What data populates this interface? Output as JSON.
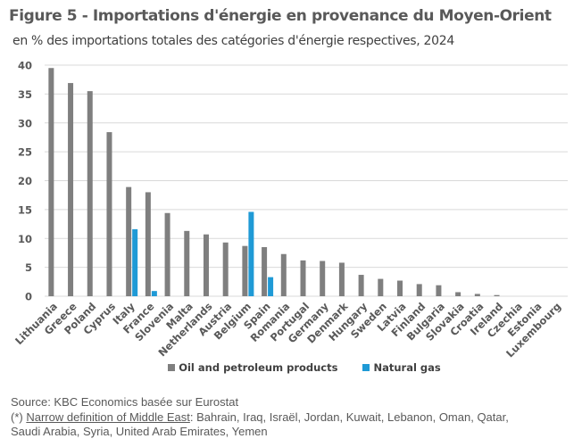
{
  "header": {
    "title": "Figure 5 - Importations d'énergie en provenance du Moyen-Orient",
    "subtitle": "en % des importations totales des catégories d'énergie respectives, 2024"
  },
  "footer": {
    "source": "Source: KBC Economics basée sur  Eurostat",
    "note_prefix": "(*) ",
    "note_link": "Narrow definition of Middle East",
    "note_rest": ": Bahrain, Iraq, Israël, Jordan, Kuwait, Lebanon, Oman, Qatar,",
    "note_line2": "Saudi Arabia, Syria, United Arab Emirates, Yemen"
  },
  "chart_data": {
    "type": "bar",
    "title": "Figure 5 - Importations d'énergie en provenance du Moyen-Orient",
    "subtitle": "en % des importations totales des catégories d'énergie respectives, 2024",
    "xlabel": "",
    "ylabel": "",
    "ylim": [
      0,
      40
    ],
    "yticks": [
      0,
      5,
      10,
      15,
      20,
      25,
      30,
      35,
      40
    ],
    "grid": true,
    "legend_position": "bottom",
    "categories": [
      "Lithuania",
      "Greece",
      "Poland",
      "Cyprus",
      "Italy",
      "France",
      "Slovenia",
      "Malta",
      "Netherlands",
      "Austria",
      "Belgium",
      "Spain",
      "Romania",
      "Portugal",
      "Germany",
      "Denmark",
      "Hungary",
      "Sweden",
      "Latvia",
      "Finland",
      "Bulgaria",
      "Slovakia",
      "Croatia",
      "Ireland",
      "Czechia",
      "Estonia",
      "Luxembourg"
    ],
    "series": [
      {
        "name": "Oil and petroleum products",
        "color": "#7f7f7f",
        "values": [
          39.5,
          36.9,
          35.5,
          28.4,
          18.9,
          18.0,
          14.4,
          11.3,
          10.7,
          9.3,
          8.7,
          8.5,
          7.3,
          6.2,
          6.1,
          5.8,
          3.7,
          3.0,
          2.7,
          2.1,
          1.9,
          0.7,
          0.4,
          0.2,
          0,
          0,
          0
        ]
      },
      {
        "name": "Natural gas",
        "color": "#1f9ad6",
        "values": [
          0,
          0,
          0,
          0,
          11.6,
          0.9,
          0,
          0,
          0,
          0,
          14.6,
          3.3,
          0,
          0,
          0,
          0,
          0,
          0,
          0,
          0,
          0,
          0,
          0,
          0,
          0,
          0,
          0
        ]
      }
    ]
  }
}
